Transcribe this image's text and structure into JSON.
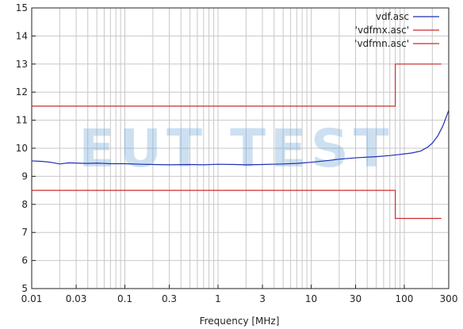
{
  "chart_data": {
    "type": "line",
    "title": "",
    "xlabel": "Frequency [MHz]",
    "ylabel": "",
    "x_scale": "log",
    "xlim": [
      0.01,
      300
    ],
    "ylim": [
      5,
      15
    ],
    "grid": true,
    "legend_position": "top-right",
    "xticks": [
      {
        "value": 0.01,
        "label": "0.01"
      },
      {
        "value": 0.03,
        "label": "0.03"
      },
      {
        "value": 0.1,
        "label": "0.1"
      },
      {
        "value": 0.3,
        "label": "0.3"
      },
      {
        "value": 1,
        "label": "1"
      },
      {
        "value": 3,
        "label": "3"
      },
      {
        "value": 10,
        "label": "10"
      },
      {
        "value": 30,
        "label": "30"
      },
      {
        "value": 100,
        "label": "100"
      },
      {
        "value": 300,
        "label": "300"
      }
    ],
    "yticks": [
      {
        "value": 5,
        "label": "5"
      },
      {
        "value": 6,
        "label": "6"
      },
      {
        "value": 7,
        "label": "7"
      },
      {
        "value": 8,
        "label": "8"
      },
      {
        "value": 9,
        "label": "9"
      },
      {
        "value": 10,
        "label": "10"
      },
      {
        "value": 11,
        "label": "11"
      },
      {
        "value": 12,
        "label": "12"
      },
      {
        "value": 13,
        "label": "13"
      },
      {
        "value": 14,
        "label": "14"
      },
      {
        "value": 15,
        "label": "15"
      }
    ],
    "series": [
      {
        "name": "vdf.asc",
        "color": "#1f2fb4",
        "x": [
          0.01,
          0.013,
          0.016,
          0.02,
          0.025,
          0.03,
          0.04,
          0.05,
          0.07,
          0.1,
          0.15,
          0.2,
          0.3,
          0.5,
          0.7,
          1,
          1.5,
          2,
          3,
          5,
          7,
          10,
          15,
          20,
          30,
          50,
          70,
          90,
          120,
          150,
          180,
          200,
          230,
          260,
          300
        ],
        "y": [
          9.55,
          9.53,
          9.5,
          9.44,
          9.48,
          9.47,
          9.46,
          9.47,
          9.45,
          9.45,
          9.43,
          9.42,
          9.41,
          9.42,
          9.41,
          9.43,
          9.42,
          9.41,
          9.42,
          9.44,
          9.46,
          9.5,
          9.56,
          9.61,
          9.66,
          9.7,
          9.74,
          9.78,
          9.83,
          9.9,
          10.05,
          10.18,
          10.45,
          10.8,
          11.35
        ]
      },
      {
        "name": "'vdfmx.asc'",
        "color": "#d22b2b",
        "x": [
          0.01,
          80,
          80,
          250
        ],
        "y": [
          11.5,
          11.5,
          13,
          13
        ]
      },
      {
        "name": "'vdfmn.asc'",
        "color": "#d22b2b",
        "x": [
          0.01,
          80,
          80,
          250
        ],
        "y": [
          8.5,
          8.5,
          7.5,
          7.5
        ]
      }
    ],
    "watermark": "EUT TEST"
  }
}
